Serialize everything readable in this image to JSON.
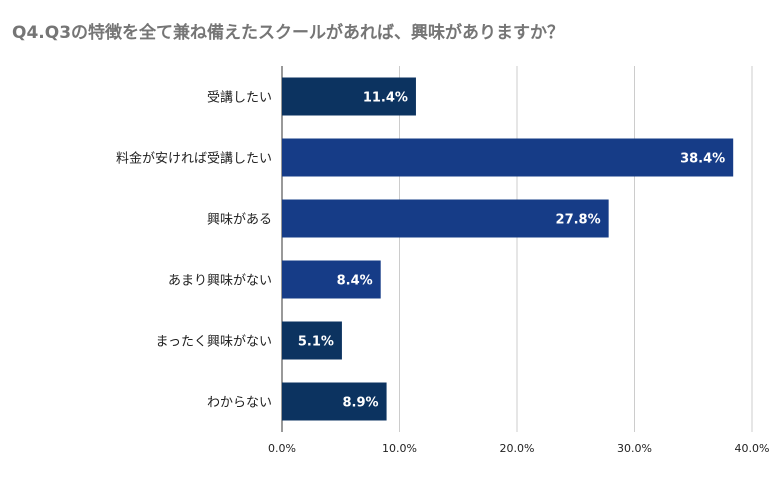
{
  "chart_data": {
    "type": "bar",
    "orientation": "horizontal",
    "title": "Q4.Q3の特徴を全て兼ね備えたスクールがあれば、興味がありますか？",
    "categories": [
      "受講したい",
      "料金が安ければ受講したい",
      "興味がある",
      "あまり興味がない",
      "まったく興味がない",
      "わからない"
    ],
    "values": [
      11.4,
      38.4,
      27.8,
      8.4,
      5.1,
      8.9
    ],
    "data_labels": [
      "11.4%",
      "38.4%",
      "27.8%",
      "8.4%",
      "5.1%",
      "8.9%"
    ],
    "bar_colors": [
      "#0c3360",
      "#163c87",
      "#163c87",
      "#163c87",
      "#0c3360",
      "#0c3360"
    ],
    "xlim": [
      0,
      40
    ],
    "xticks": [
      0,
      10,
      20,
      30,
      40
    ],
    "xtick_labels": [
      "0.0%",
      "10.0%",
      "20.0%",
      "30.0%",
      "40.0%"
    ],
    "grid": true,
    "legend": "none"
  }
}
